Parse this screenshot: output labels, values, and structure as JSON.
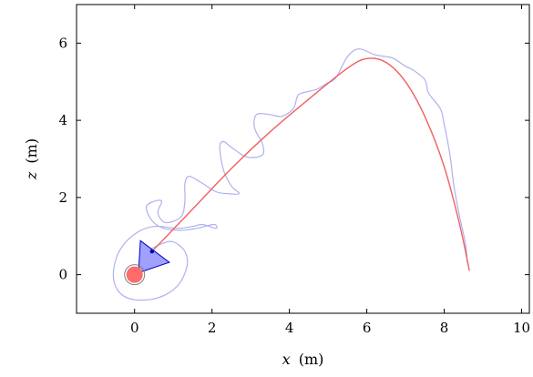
{
  "chart_data": {
    "type": "line",
    "xlabel_var": "x",
    "xlabel_unit": "(m)",
    "ylabel_var": "z",
    "ylabel_unit": "(m)",
    "xlim": [
      -1.5,
      10.2
    ],
    "ylim": [
      -1.0,
      7.0
    ],
    "xticks": [
      0,
      2,
      4,
      6,
      8,
      10
    ],
    "yticks": [
      0,
      2,
      4,
      6
    ],
    "grid": false,
    "colors": {
      "trajectory": "#f06060",
      "wobble": "#b0b0f0",
      "marker_fill": "#ff6b6b",
      "marker_ring": "#808080",
      "cone_fill": "#8080ff",
      "cone_stroke": "#0000c0"
    },
    "series": [
      {
        "role": "center-trajectory",
        "points": [
          [
            0.45,
            0.6
          ],
          [
            1.5,
            1.7
          ],
          [
            2.5,
            2.75
          ],
          [
            3.5,
            3.7
          ],
          [
            4.5,
            4.55
          ],
          [
            5.5,
            5.35
          ],
          [
            6.0,
            5.6
          ],
          [
            6.5,
            5.5
          ],
          [
            7.0,
            5.0
          ],
          [
            7.5,
            4.1
          ],
          [
            8.0,
            2.8
          ],
          [
            8.4,
            1.3
          ],
          [
            8.65,
            0.1
          ]
        ]
      },
      {
        "role": "tip-path",
        "points": [
          [
            0.4,
            0.65
          ],
          [
            0.7,
            0.8
          ],
          [
            1.0,
            0.85
          ],
          [
            1.3,
            0.6
          ],
          [
            1.35,
            0.2
          ],
          [
            1.1,
            -0.3
          ],
          [
            0.6,
            -0.6
          ],
          [
            0.0,
            -0.65
          ],
          [
            -0.4,
            -0.45
          ],
          [
            -0.55,
            0.0
          ],
          [
            -0.4,
            0.6
          ],
          [
            0.0,
            1.05
          ],
          [
            0.5,
            1.25
          ],
          [
            1.1,
            1.2
          ],
          [
            1.5,
            1.25
          ],
          [
            1.75,
            1.3
          ],
          [
            2.1,
            1.2
          ],
          [
            2.05,
            1.3
          ],
          [
            1.6,
            1.2
          ],
          [
            1.2,
            1.15
          ],
          [
            0.75,
            1.2
          ],
          [
            0.45,
            1.4
          ],
          [
            0.3,
            1.75
          ],
          [
            0.5,
            1.9
          ],
          [
            0.7,
            1.9
          ],
          [
            0.6,
            1.6
          ],
          [
            0.8,
            1.35
          ],
          [
            1.2,
            1.5
          ],
          [
            1.3,
            1.9
          ],
          [
            1.3,
            2.35
          ],
          [
            1.4,
            2.55
          ],
          [
            1.7,
            2.4
          ],
          [
            2.1,
            2.15
          ],
          [
            2.4,
            2.1
          ],
          [
            2.7,
            2.1
          ],
          [
            2.5,
            2.3
          ],
          [
            2.3,
            2.7
          ],
          [
            2.2,
            3.3
          ],
          [
            2.3,
            3.45
          ],
          [
            2.5,
            3.3
          ],
          [
            2.9,
            3.05
          ],
          [
            3.3,
            3.1
          ],
          [
            3.3,
            3.4
          ],
          [
            3.1,
            3.8
          ],
          [
            3.15,
            4.15
          ],
          [
            3.5,
            4.15
          ],
          [
            3.8,
            4.1
          ],
          [
            4.1,
            4.3
          ],
          [
            4.2,
            4.6
          ],
          [
            4.3,
            4.7
          ],
          [
            4.7,
            4.8
          ],
          [
            4.95,
            4.95
          ],
          [
            5.2,
            5.1
          ],
          [
            5.5,
            5.65
          ],
          [
            5.8,
            5.85
          ],
          [
            6.2,
            5.7
          ],
          [
            6.5,
            5.65
          ],
          [
            6.7,
            5.6
          ],
          [
            7.0,
            5.4
          ],
          [
            7.2,
            5.3
          ],
          [
            7.5,
            5.05
          ],
          [
            7.6,
            4.7
          ],
          [
            7.9,
            4.3
          ],
          [
            8.0,
            3.9
          ],
          [
            8.15,
            3.1
          ],
          [
            8.25,
            2.3
          ],
          [
            8.4,
            1.5
          ],
          [
            8.55,
            0.8
          ],
          [
            8.6,
            0.3
          ]
        ]
      }
    ],
    "markers": {
      "base_point": [
        0.0,
        0.0
      ],
      "cone_apex": [
        0.45,
        0.6
      ],
      "cone_corners": [
        [
          0.15,
          0.88
        ],
        [
          0.9,
          0.32
        ],
        [
          0.1,
          0.05
        ]
      ]
    }
  }
}
